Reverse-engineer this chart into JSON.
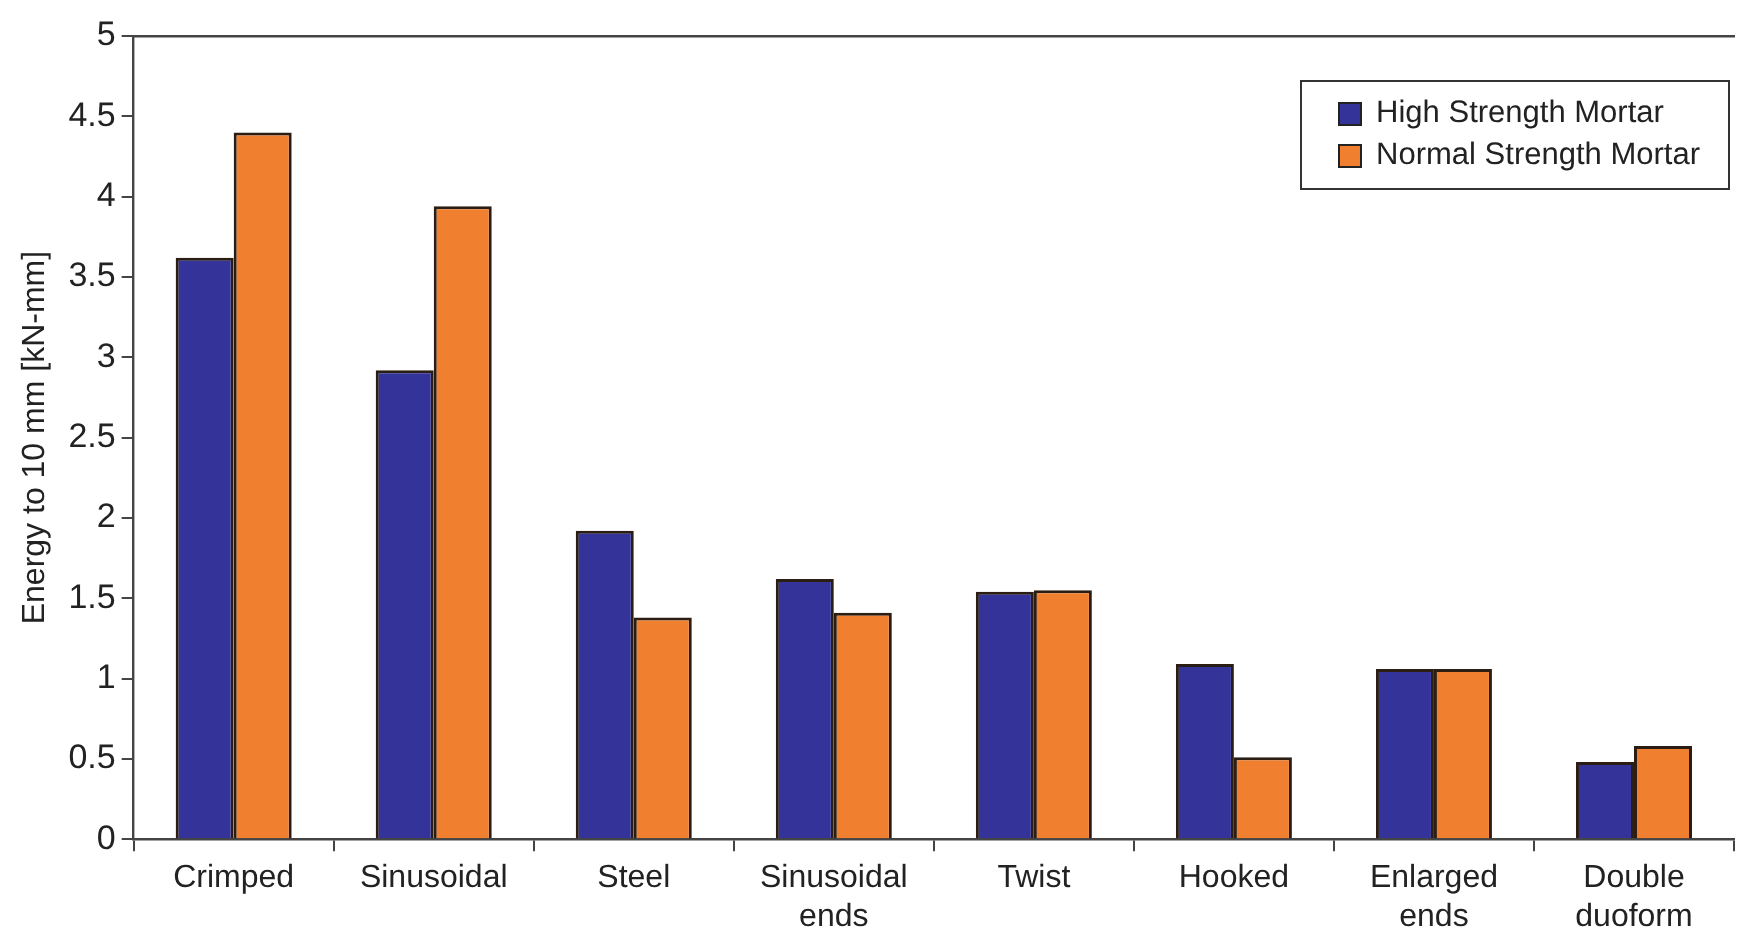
{
  "chart_data": {
    "type": "bar",
    "ylabel": "Energy to 10 mm [kN-mm]",
    "categories": [
      "Crimped",
      "Sinusoidal",
      "Steel",
      "Sinusoidal ends",
      "Twist",
      "Hooked",
      "Enlarged ends",
      "Double duoform"
    ],
    "series": [
      {
        "name": "High Strength Mortar",
        "color": "#333399",
        "values": [
          3.62,
          2.92,
          1.92,
          1.62,
          1.54,
          1.09,
          1.06,
          0.48
        ]
      },
      {
        "name": "Normal Strength Mortar",
        "color": "#f08030",
        "values": [
          4.4,
          3.94,
          1.38,
          1.41,
          1.55,
          0.51,
          1.06,
          0.58
        ]
      }
    ],
    "ylim": [
      0,
      5
    ],
    "yticks": [
      0,
      0.5,
      1,
      1.5,
      2,
      2.5,
      3,
      3.5,
      4,
      4.5,
      5
    ],
    "grid": false,
    "legend": "top right"
  }
}
